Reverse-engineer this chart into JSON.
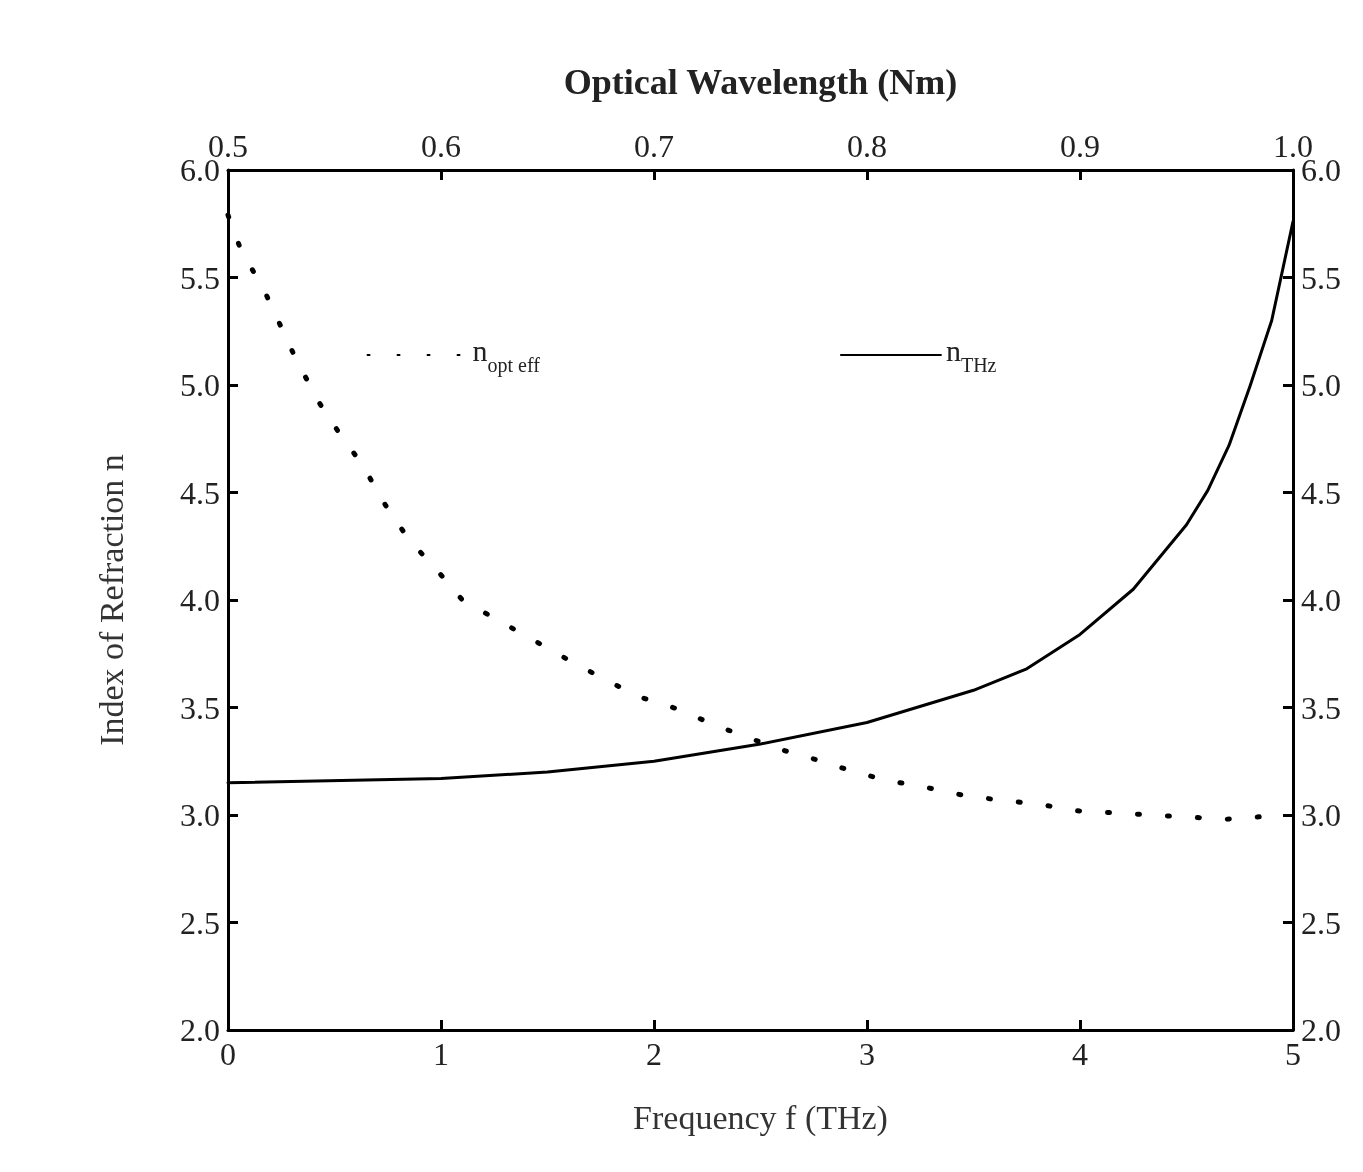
{
  "chart_data": {
    "type": "line",
    "xlabel": "Frequency f (THz)",
    "x2label": "Optical Wavelength (Nm)",
    "ylabel": "Index of Refraction n",
    "xlim": [
      0,
      5
    ],
    "xticks": [
      0,
      1,
      2,
      3,
      4,
      5
    ],
    "x2lim": [
      0.5,
      1.0
    ],
    "x2ticks": [
      {
        "value": 0.5,
        "label": "0.5"
      },
      {
        "value": 0.6,
        "label": "0.6"
      },
      {
        "value": 0.7,
        "label": "0.7"
      },
      {
        "value": 0.8,
        "label": "0.8"
      },
      {
        "value": 0.9,
        "label": "0.9"
      },
      {
        "value": 1.0,
        "label": "1.0"
      }
    ],
    "ylim": [
      2,
      6
    ],
    "yticks": [
      {
        "value": 2,
        "label": "2.0"
      },
      {
        "value": 2.5,
        "label": "2.5"
      },
      {
        "value": 3,
        "label": "3.0"
      },
      {
        "value": 3.5,
        "label": "3.5"
      },
      {
        "value": 4,
        "label": "4.0"
      },
      {
        "value": 4.5,
        "label": "4.5"
      },
      {
        "value": 5,
        "label": "5.0"
      },
      {
        "value": 5.5,
        "label": "5.5"
      },
      {
        "value": 6,
        "label": "6.0"
      }
    ],
    "y2lim": [
      2,
      6
    ],
    "y2ticks": [
      {
        "value": 2,
        "label": "2.0"
      },
      {
        "value": 2.5,
        "label": "2.5"
      },
      {
        "value": 3,
        "label": "3.0"
      },
      {
        "value": 3.5,
        "label": "3.5"
      },
      {
        "value": 4,
        "label": "4.0"
      },
      {
        "value": 4.5,
        "label": "4.5"
      },
      {
        "value": 5,
        "label": "5.0"
      },
      {
        "value": 5.5,
        "label": "5.5"
      },
      {
        "value": 6,
        "label": "6.0"
      }
    ],
    "grid": false,
    "legend": "top",
    "marker": "none",
    "series": [
      {
        "name": "n$_{opt eff}$",
        "axis": "x2",
        "line_style": "dotted",
        "color": "#000000",
        "x": [
          0.5,
          0.506,
          0.517,
          0.531,
          0.542,
          0.552,
          0.563,
          0.574,
          0.585,
          0.598,
          0.61,
          0.626,
          0.644,
          0.66,
          0.677,
          0.693,
          0.712,
          0.728,
          0.747,
          0.764,
          0.779,
          0.794,
          0.81,
          0.827,
          0.846,
          0.862,
          0.881,
          0.898,
          0.916,
          0.933,
          0.952,
          0.968,
          0.996
        ],
        "values": [
          5.79,
          5.63,
          5.44,
          5.14,
          4.93,
          4.78,
          4.63,
          4.44,
          4.28,
          4.14,
          4.0,
          3.91,
          3.81,
          3.72,
          3.63,
          3.55,
          3.49,
          3.42,
          3.35,
          3.29,
          3.25,
          3.2,
          3.16,
          3.13,
          3.09,
          3.07,
          3.05,
          3.02,
          3.01,
          3.0,
          2.99,
          2.98,
          3.0
        ]
      },
      {
        "name": "n$_{THz}$",
        "line_style": "solid",
        "color": "#000000",
        "x": [
          0,
          1,
          1.5,
          2,
          2.5,
          3,
          3.5,
          3.75,
          4,
          4.25,
          4.5,
          4.6,
          4.7,
          4.8,
          4.9,
          5
        ],
        "values": [
          3.15,
          3.17,
          3.2,
          3.25,
          3.33,
          3.43,
          3.58,
          3.68,
          3.84,
          4.05,
          4.35,
          4.51,
          4.72,
          5.0,
          5.3,
          5.76
        ]
      }
    ]
  }
}
